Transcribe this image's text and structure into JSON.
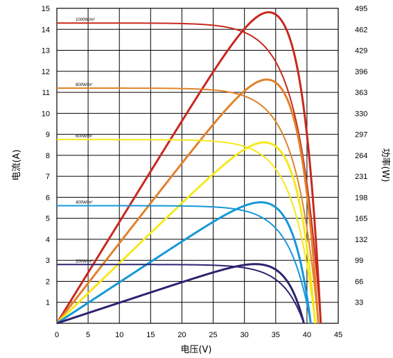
{
  "chart_data": {
    "type": "line",
    "title": "",
    "xlabel": "电压(V)",
    "ylabel": "电流(A)",
    "y2label": "功率(W)",
    "xlim": [
      0,
      45
    ],
    "ylim": [
      0,
      15
    ],
    "y2lim": [
      0,
      495
    ],
    "xticks": [
      "0",
      "5",
      "10",
      "15",
      "20",
      "25",
      "30",
      "35",
      "40",
      "45"
    ],
    "yticks": [
      "1",
      "2",
      "3",
      "4",
      "5",
      "6",
      "7",
      "8",
      "9",
      "10",
      "11",
      "12",
      "13",
      "14",
      "15"
    ],
    "y2ticks": [
      "33",
      "66",
      "99",
      "132",
      "165",
      "198",
      "231",
      "264",
      "297",
      "330",
      "363",
      "396",
      "429",
      "462",
      "495"
    ],
    "grid": true,
    "series": [
      {
        "name": "1000W/m²",
        "color": "#c8281e",
        "isc": 14.3,
        "voc": 42.2,
        "vmp": 33.3,
        "pmax": 488
      },
      {
        "name": "800W/m²",
        "color": "#e0822a",
        "isc": 11.2,
        "voc": 41.8,
        "vmp": 33.4,
        "pmax": 383
      },
      {
        "name": "600W/m²",
        "color": "#f6e81c",
        "isc": 8.75,
        "voc": 41.3,
        "vmp": 33.6,
        "pmax": 284
      },
      {
        "name": "400W/m²",
        "color": "#1598d8",
        "isc": 5.6,
        "voc": 40.6,
        "vmp": 33.0,
        "pmax": 190
      },
      {
        "name": "200W/m²",
        "color": "#2d2270",
        "isc": 2.8,
        "voc": 39.5,
        "vmp": 33.0,
        "pmax": 92
      }
    ]
  }
}
